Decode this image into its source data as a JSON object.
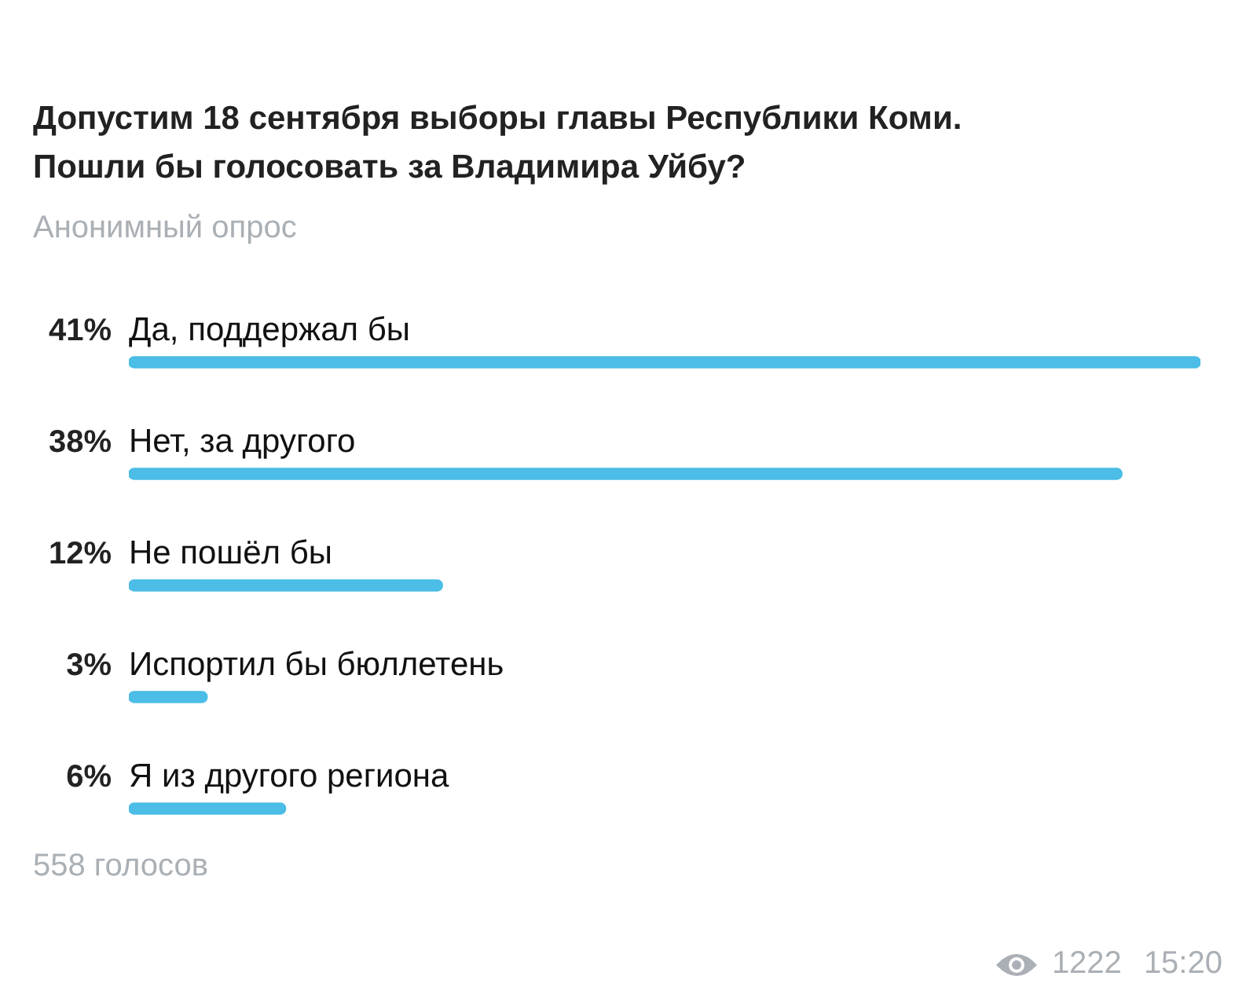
{
  "chart_data": {
    "type": "bar",
    "orientation": "horizontal",
    "title": "Допустим 18 сентября выборы главы Республики Коми.\nПошли бы голосовать за Владимира Уйбу?",
    "subtitle": "Анонимный опрос",
    "categories": [
      "Да, поддержал бы",
      "Нет, за другого",
      "Не пошёл бы",
      "Испортил бы бюллетень",
      "Я из другого региона"
    ],
    "values": [
      41,
      38,
      12,
      3,
      6
    ],
    "value_labels": [
      "41%",
      "38%",
      "12%",
      "3%",
      "6%"
    ],
    "color": "#4bbde6",
    "annotations": [
      "558 голосов",
      "1222",
      "15:20"
    ]
  }
}
